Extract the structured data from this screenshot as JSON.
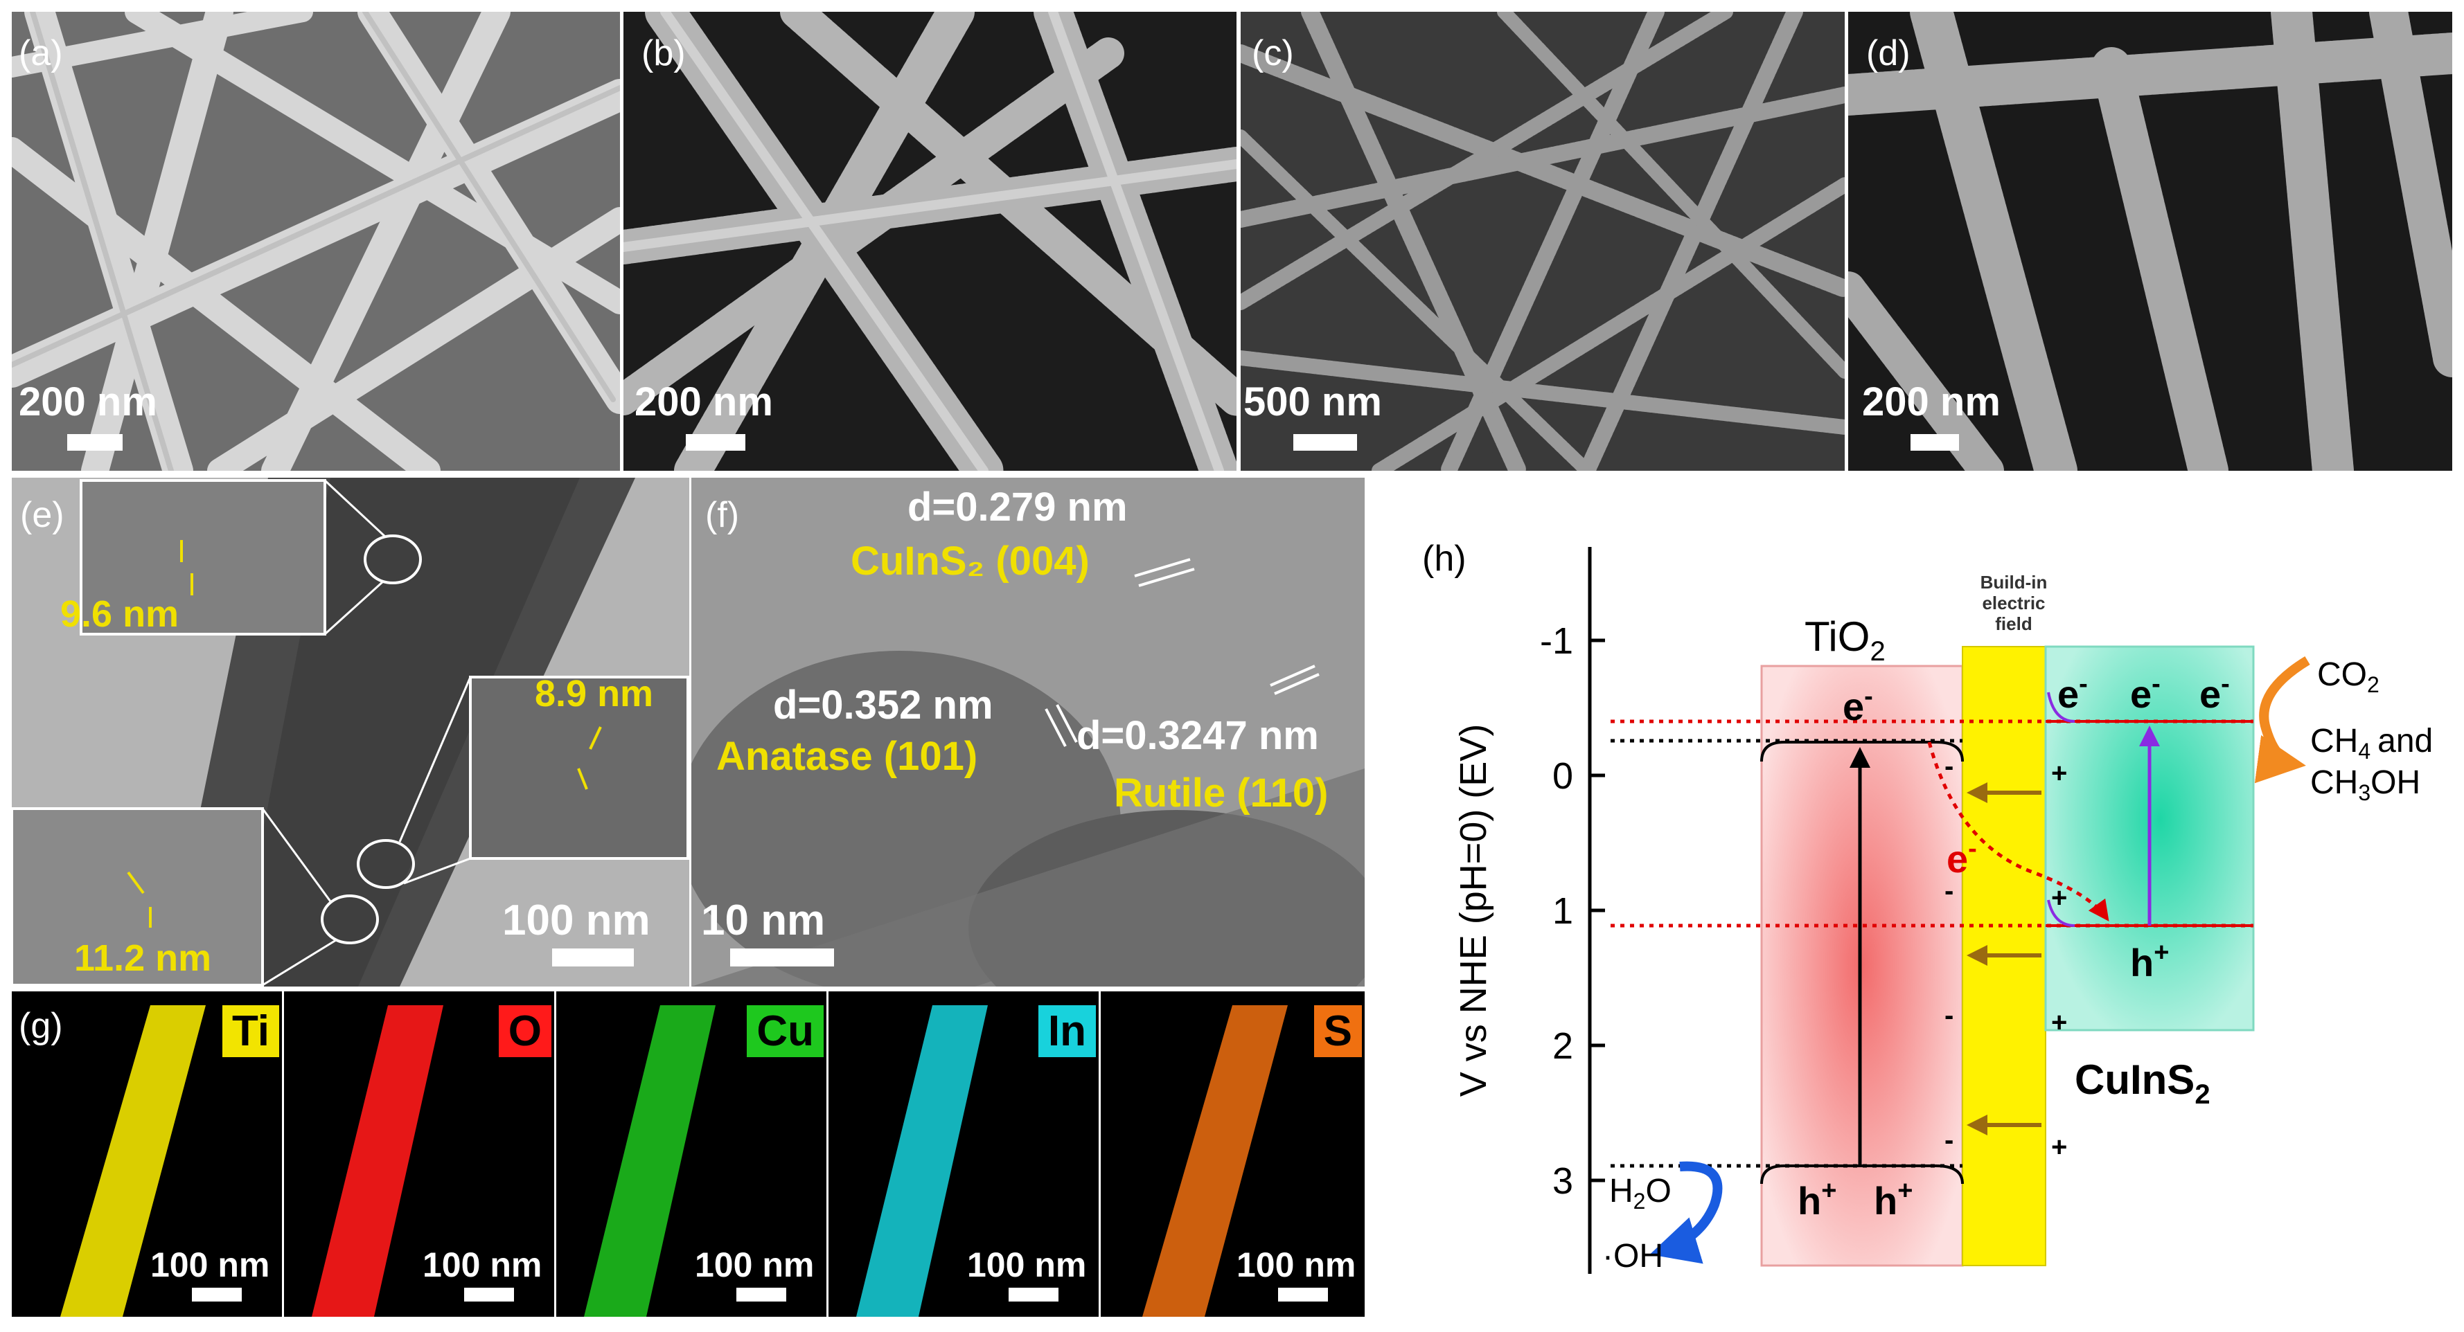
{
  "sem": [
    {
      "label": "(a)",
      "scale": "200 nm"
    },
    {
      "label": "(b)",
      "scale": "200 nm"
    },
    {
      "label": "(c)",
      "scale": "500 nm"
    },
    {
      "label": "(d)",
      "scale": "200 nm"
    }
  ],
  "tem_e": {
    "label": "(e)",
    "scale": "100 nm",
    "insets": [
      "9.6 nm",
      "8.9 nm",
      "11.2 nm"
    ]
  },
  "tem_f": {
    "label": "(f)",
    "scale": "10 nm",
    "annotations": {
      "d1": "d=0.279 nm",
      "p1": "CuInS₂ (004)",
      "d2": "d=0.352 nm",
      "p2": "Anatase (101)",
      "d3": "d=0.3247 nm",
      "p3": "Rutile (110)"
    }
  },
  "eds": {
    "label": "(g)",
    "maps": [
      {
        "element": "Ti",
        "scale": "100 nm",
        "color": "#f2e400"
      },
      {
        "element": "O",
        "scale": "100 nm",
        "color": "#ff1a1a"
      },
      {
        "element": "Cu",
        "scale": "100 nm",
        "color": "#1ec81e"
      },
      {
        "element": "In",
        "scale": "100 nm",
        "color": "#18d2dc"
      },
      {
        "element": "S",
        "scale": "100 nm",
        "color": "#f07010"
      }
    ]
  },
  "diagram_h": {
    "label": "(h)",
    "y_axis_label": "V vs NHE (pH=0) (EV)",
    "ticks": [
      "-1",
      "0",
      "1",
      "2",
      "3"
    ],
    "tio2_label": "TiO",
    "tio2_sub": "2",
    "cuins2_label": "CuInS",
    "cuins2_sub": "2",
    "field_label": [
      "Build-in",
      "electric",
      "field"
    ],
    "electron": "e",
    "electron_sup": "-",
    "hole": "h",
    "hole_sup": "+",
    "co2": "CO",
    "co2_sub": "2",
    "ch4_and": "CH",
    "ch4_sub": "4",
    "and_word": "and",
    "ch3oh_a": "CH",
    "ch3oh_sub": "3",
    "ch3oh_b": "OH",
    "h2o_a": "H",
    "h2o_sub": "2",
    "h2o_b": "O",
    "oh": "·OH",
    "plus": "+",
    "minus": "-"
  }
}
